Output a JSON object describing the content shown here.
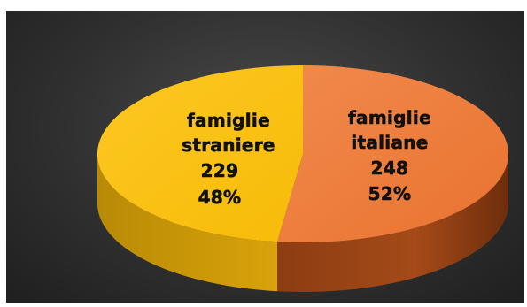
{
  "chart_data": {
    "type": "pie",
    "style": "3d",
    "categories": [
      "famiglie italiane",
      "famiglie straniere"
    ],
    "values": [
      248,
      229
    ],
    "percentages": [
      "52%",
      "48%"
    ],
    "colors": {
      "famiglie italiane": "#ee7d3b",
      "famiglie straniere": "#fcc311"
    },
    "labels": [
      {
        "line1": "famiglie",
        "line2": "italiane",
        "value": "248",
        "percent": "52%"
      },
      {
        "line1": "famiglie",
        "line2": "straniere",
        "value": "229",
        "percent": "48%"
      }
    ],
    "title": "",
    "legend": "none",
    "background": "#333333"
  }
}
